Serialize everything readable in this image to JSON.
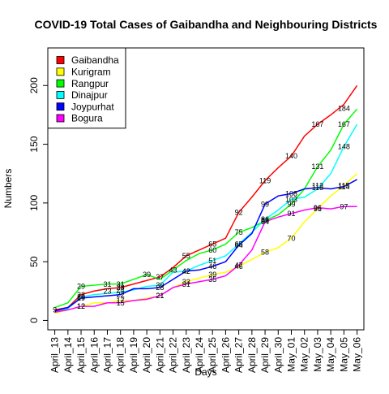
{
  "chart_data": {
    "type": "line",
    "title": "COVID-19 Total Cases of Gaibandha and Neighbouring Districts",
    "xlabel": "Days",
    "ylabel": "Numbers",
    "ylim": [
      -8,
      232
    ],
    "yticks": [
      0,
      50,
      100,
      150,
      200
    ],
    "grid": false,
    "legend_position": "top-left",
    "x": [
      "April_13",
      "April_14",
      "April_15",
      "April_16",
      "April_17",
      "April_18",
      "April_19",
      "April_20",
      "April_21",
      "April_22",
      "April_23",
      "April_24",
      "April_25",
      "April_26",
      "April_27",
      "April_28",
      "April_29",
      "April_30",
      "May_01",
      "May_02",
      "May_03",
      "May_04",
      "May_05",
      "May_06"
    ],
    "series": [
      {
        "name": "Gaibandha",
        "color": "#ff0000",
        "values": [
          9,
          11,
          22,
          25,
          27,
          28,
          31,
          34,
          37,
          45,
          55,
          60,
          65,
          70,
          92,
          105,
          119,
          130,
          140,
          157,
          167,
          175,
          184,
          200
        ],
        "label_indices": [
          0,
          2,
          5,
          8,
          10,
          12,
          14,
          16,
          18,
          20,
          22
        ],
        "label_offsets": [
          0,
          0,
          0,
          0,
          0,
          0,
          0,
          0,
          0,
          0,
          5
        ]
      },
      {
        "name": "Kurigram",
        "color": "#ffff00",
        "values": [
          6,
          9,
          12,
          15,
          15,
          17,
          17,
          19,
          21,
          28,
          33,
          36,
          39,
          41,
          46,
          52,
          58,
          62,
          70,
          84,
          95,
          106,
          115,
          125
        ],
        "label_indices": [
          2,
          5,
          8,
          10,
          12,
          14,
          16,
          18,
          20,
          22
        ],
        "label_offsets": [
          0,
          0,
          0,
          0,
          0,
          0,
          0,
          0,
          0,
          0
        ]
      },
      {
        "name": "Rangpur",
        "color": "#00ff00",
        "values": [
          11,
          15,
          29,
          30,
          31,
          31,
          35,
          39,
          35,
          43,
          51,
          57,
          60,
          65,
          75,
          79,
          85,
          90,
          99,
          112,
          131,
          145,
          167,
          180
        ],
        "label_indices": [
          2,
          4,
          5,
          7,
          9,
          12,
          14,
          16,
          18,
          20,
          22
        ],
        "label_offsets": [
          0,
          0,
          0,
          0,
          0,
          0,
          0,
          0,
          0,
          0,
          0
        ]
      },
      {
        "name": "Dinajpur",
        "color": "#00ffff",
        "values": [
          7,
          10,
          20,
          22,
          23,
          24,
          26,
          29,
          30,
          41,
          42,
          47,
          51,
          55,
          65,
          75,
          86,
          94,
          103,
          105,
          112,
          125,
          148,
          167
        ],
        "label_indices": [
          2,
          4,
          5,
          8,
          10,
          12,
          14,
          16,
          18,
          20,
          22
        ],
        "label_offsets": [
          0,
          -3,
          -3,
          0,
          0,
          0,
          0,
          0,
          0,
          -4,
          0
        ]
      },
      {
        "name": "Joypurhat",
        "color": "#0000ff",
        "values": [
          8,
          11,
          19,
          20,
          21,
          22,
          27,
          27,
          28,
          35,
          42,
          43,
          46,
          50,
          64,
          74,
          99,
          106,
          108,
          112,
          113,
          112,
          114,
          120
        ],
        "label_indices": [
          2,
          5,
          8,
          10,
          12,
          14,
          16,
          18,
          20,
          22
        ],
        "label_offsets": [
          0,
          0,
          0,
          0,
          0,
          0,
          0,
          0,
          0,
          0
        ]
      },
      {
        "name": "Bogura",
        "color": "#ff00ff",
        "values": [
          7,
          9,
          12,
          12,
          15,
          15,
          17,
          18,
          21,
          28,
          31,
          33,
          35,
          38,
          47,
          60,
          84,
          88,
          91,
          94,
          96,
          95,
          97,
          97
        ],
        "label_indices": [
          2,
          5,
          8,
          10,
          12,
          14,
          16,
          18,
          20,
          22
        ],
        "label_offsets": [
          0,
          0,
          0,
          0,
          0,
          0,
          0,
          0,
          0,
          0
        ]
      }
    ]
  }
}
